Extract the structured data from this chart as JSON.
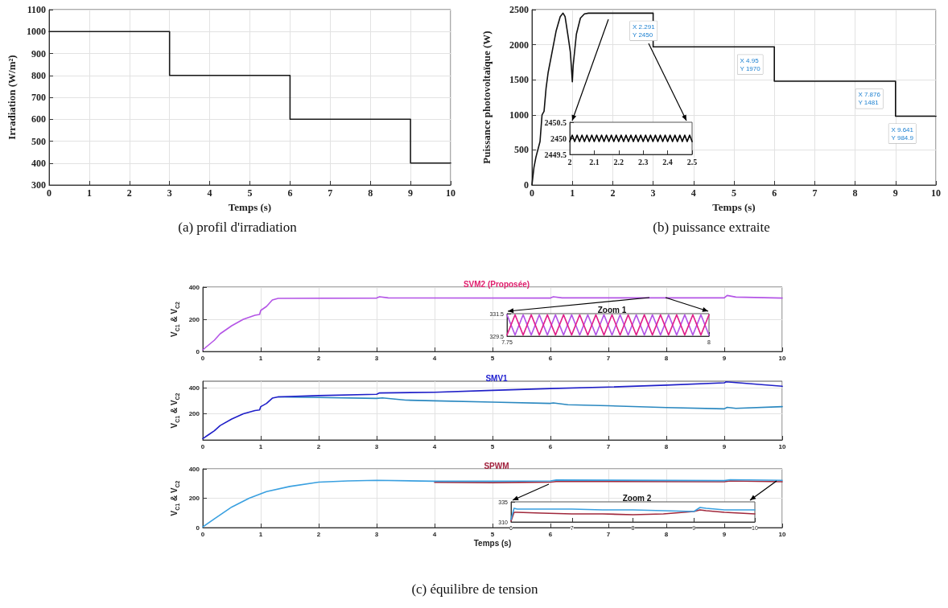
{
  "chart_data": [
    {
      "type": "line",
      "xlabel": "Temps (s)",
      "ylabel": "Irradiation (W/m²)",
      "xlim": [
        0,
        10
      ],
      "xticks": [
        0,
        1,
        2,
        3,
        4,
        5,
        6,
        7,
        8,
        9,
        10
      ],
      "ylim": [
        300,
        1100
      ],
      "yticks": [
        300,
        400,
        500,
        600,
        700,
        800,
        900,
        1000,
        1100
      ],
      "grid": true,
      "annotations": [
        "(a) profil d'irradiation"
      ],
      "series": [
        {
          "color": "#1a1a1a",
          "x": [
            0,
            3,
            3,
            6,
            6,
            9,
            9,
            10
          ],
          "values": [
            1000,
            1000,
            800,
            800,
            600,
            600,
            400,
            400
          ]
        }
      ]
    },
    {
      "type": "line",
      "xlabel": "Temps (s)",
      "ylabel": "Puissance photovoltaïque (W)",
      "xlim": [
        0,
        10
      ],
      "xticks": [
        0,
        1,
        2,
        3,
        4,
        5,
        6,
        7,
        8,
        9,
        10
      ],
      "ylim": [
        0,
        2500
      ],
      "yticks": [
        0,
        500,
        1000,
        1500,
        2000,
        2500
      ],
      "grid": true,
      "annotations": [
        {
          "text": "X 2.291\nY 2450",
          "x": 2.291,
          "y": 2450
        },
        {
          "text": "X 4.95\nY 1970",
          "x": 4.95,
          "y": 1970
        },
        {
          "text": "X 7.876\nY 1481",
          "x": 7.876,
          "y": 1481
        },
        {
          "text": "X 9.641\nY 984.9",
          "x": 9.641,
          "y": 984.9
        },
        "(b) puissance extraite"
      ],
      "series": [
        {
          "color": "#111111",
          "x": [
            0,
            0.05,
            0.1,
            0.2,
            0.25,
            0.3,
            0.35,
            0.4,
            0.5,
            0.6,
            0.7,
            0.77,
            0.82,
            0.9,
            0.95,
            0.98,
            1.0,
            1.02,
            1.1,
            1.2,
            1.3,
            1.4,
            3,
            3,
            6,
            6,
            9,
            9,
            10
          ],
          "values": [
            0,
            250,
            400,
            620,
            1000,
            1050,
            1380,
            1600,
            1900,
            2200,
            2400,
            2450,
            2400,
            2100,
            1900,
            1650,
            1470,
            1700,
            2150,
            2380,
            2440,
            2450,
            2450,
            1970,
            1970,
            1480,
            1480,
            980,
            980
          ]
        }
      ]
    },
    {
      "type": "line",
      "xlim": [
        2,
        2.5
      ],
      "xticks": [
        2,
        2.1,
        2.2,
        2.3,
        2.4,
        2.5
      ],
      "ylim": [
        2449.5,
        2450.5
      ],
      "yticks": [
        2449.5,
        2450,
        2450.5
      ],
      "series": [
        {
          "color": "#000000",
          "x": [
            2,
            2.01,
            2.02,
            2.03,
            2.04,
            2.05,
            2.06,
            2.07,
            2.08,
            2.09,
            2.1,
            2.11,
            2.12,
            2.13,
            2.14,
            2.15,
            2.16,
            2.17,
            2.18,
            2.19,
            2.2,
            2.21,
            2.22,
            2.23,
            2.24,
            2.25,
            2.26,
            2.27,
            2.28,
            2.29,
            2.3,
            2.31,
            2.32,
            2.33,
            2.34,
            2.35,
            2.36,
            2.37,
            2.38,
            2.39,
            2.4,
            2.41,
            2.42,
            2.43,
            2.44,
            2.45,
            2.46,
            2.47,
            2.48,
            2.49,
            2.5
          ],
          "values": [
            2449.9,
            2450.1,
            2449.9,
            2450.1,
            2449.9,
            2450.1,
            2449.9,
            2450.1,
            2449.9,
            2450.1,
            2449.9,
            2450.1,
            2449.9,
            2450.1,
            2449.9,
            2450.1,
            2449.9,
            2450.1,
            2449.9,
            2450.1,
            2449.9,
            2450.1,
            2449.9,
            2450.1,
            2449.9,
            2450.1,
            2449.9,
            2450.1,
            2449.9,
            2450.1,
            2449.9,
            2450.1,
            2449.9,
            2450.1,
            2449.9,
            2450.1,
            2449.9,
            2450.1,
            2449.9,
            2450.1,
            2449.9,
            2450.1,
            2449.9,
            2450.1,
            2449.9,
            2450.1,
            2449.9,
            2450.1,
            2449.9,
            2450.1,
            2449.9
          ]
        }
      ]
    },
    {
      "type": "line",
      "title": "SVM2 (Proposée)",
      "ylabel": "V$_{C1}$ & V$_{C2}$",
      "xlim": [
        0,
        10
      ],
      "xticks": [
        0,
        1,
        2,
        3,
        4,
        5,
        6,
        7,
        8,
        9,
        10
      ],
      "ylim": [
        0,
        400
      ],
      "yticks": [
        0,
        200,
        400
      ],
      "grid": true,
      "series": [
        {
          "color": "#b455e6",
          "x": [
            0,
            0.1,
            0.2,
            0.3,
            0.5,
            0.7,
            0.9,
            0.98,
            1.0,
            1.1,
            1.2,
            1.3,
            3,
            3.05,
            3.2,
            6,
            6.05,
            6.2,
            9,
            9.05,
            9.2,
            10
          ],
          "values": [
            10,
            40,
            70,
            110,
            160,
            200,
            225,
            230,
            255,
            280,
            320,
            330,
            332,
            340,
            333,
            332,
            340,
            333,
            333,
            348,
            338,
            332
          ]
        }
      ]
    },
    {
      "type": "line",
      "title": "Zoom 1",
      "xlim": [
        7.75,
        8
      ],
      "xticks": [
        7.75,
        8
      ],
      "ylim": [
        329.5,
        331.5
      ],
      "yticks": [
        329.5,
        331.5
      ],
      "series": [
        {
          "color": "#b455e6",
          "x": [
            7.75,
            7.76,
            7.77,
            7.78,
            7.79,
            7.8,
            7.81,
            7.82,
            7.83,
            7.84,
            7.85,
            7.86,
            7.87,
            7.88,
            7.89,
            7.9,
            7.91,
            7.92,
            7.93,
            7.94,
            7.95,
            7.96,
            7.97,
            7.98,
            7.99,
            8
          ],
          "values": [
            331.4,
            329.6,
            331.4,
            329.6,
            331.4,
            329.6,
            331.4,
            329.6,
            331.4,
            329.6,
            331.4,
            329.6,
            331.4,
            329.6,
            331.4,
            329.6,
            331.4,
            329.6,
            331.4,
            329.6,
            331.4,
            329.6,
            331.4,
            329.6,
            331.4,
            329.6
          ]
        },
        {
          "color": "#e0208c",
          "x": [
            7.75,
            7.76,
            7.77,
            7.78,
            7.79,
            7.8,
            7.81,
            7.82,
            7.83,
            7.84,
            7.85,
            7.86,
            7.87,
            7.88,
            7.89,
            7.9,
            7.91,
            7.92,
            7.93,
            7.94,
            7.95,
            7.96,
            7.97,
            7.98,
            7.99,
            8
          ],
          "values": [
            329.6,
            331.4,
            329.6,
            331.4,
            329.6,
            331.4,
            329.6,
            331.4,
            329.6,
            331.4,
            329.6,
            331.4,
            329.6,
            331.4,
            329.6,
            331.4,
            329.6,
            331.4,
            329.6,
            331.4,
            329.6,
            331.4,
            329.6,
            331.4,
            329.6,
            331.4
          ]
        }
      ]
    },
    {
      "type": "line",
      "title": "SMV1",
      "ylabel": "V$_{C1}$ & V$_{C2}$",
      "xlim": [
        0,
        10
      ],
      "xticks": [
        0,
        1,
        2,
        3,
        4,
        5,
        6,
        7,
        8,
        9,
        10
      ],
      "ylim": [
        0,
        450
      ],
      "yticks": [
        200,
        400
      ],
      "grid": true,
      "series": [
        {
          "color": "#2a88c0",
          "x": [
            1.3,
            2,
            3,
            3.1,
            3.5,
            4,
            5,
            6,
            6.05,
            6.3,
            7,
            8,
            9,
            9.05,
            9.2,
            10
          ],
          "values": [
            330,
            325,
            318,
            322,
            305,
            300,
            290,
            280,
            284,
            270,
            262,
            248,
            238,
            250,
            242,
            255
          ]
        },
        {
          "color": "#1f1fc8",
          "x": [
            0,
            0.1,
            0.2,
            0.3,
            0.5,
            0.7,
            0.9,
            0.98,
            1.0,
            1.1,
            1.2,
            1.3,
            2,
            3,
            3.05,
            4,
            5,
            6,
            7,
            8,
            9,
            9.03,
            10
          ],
          "values": [
            10,
            40,
            70,
            110,
            160,
            200,
            225,
            230,
            255,
            280,
            320,
            330,
            340,
            350,
            360,
            365,
            380,
            394,
            405,
            420,
            438,
            445,
            411
          ]
        }
      ]
    },
    {
      "type": "line",
      "title": "SPWM",
      "xlabel": "Temps (s)",
      "ylabel": "V$_{C1}$ & V$_{C2}$",
      "xlim": [
        0,
        10
      ],
      "xticks": [
        0,
        1,
        2,
        3,
        4,
        5,
        6,
        7,
        8,
        9,
        10
      ],
      "ylim": [
        0,
        400
      ],
      "yticks": [
        0,
        200,
        400
      ],
      "grid": true,
      "annotations": [
        "(c) équilibre de tension"
      ],
      "series": [
        {
          "color": "#a0283c",
          "x": [
            4,
            5,
            6,
            6.1,
            9,
            9.1,
            10
          ],
          "values": [
            308,
            306,
            310,
            314,
            312,
            318,
            312
          ]
        },
        {
          "color": "#3aa0e0",
          "x": [
            0,
            0.2,
            0.5,
            0.8,
            1,
            1.1,
            1.5,
            2,
            2.5,
            3,
            4,
            5,
            6,
            6.1,
            9,
            9.1,
            10
          ],
          "values": [
            5,
            60,
            140,
            200,
            230,
            245,
            280,
            310,
            318,
            322,
            316,
            316,
            318,
            324,
            320,
            326,
            322
          ]
        }
      ]
    },
    {
      "type": "line",
      "title": "Zoom 2",
      "xlim": [
        6,
        10
      ],
      "xticks": [
        6,
        7,
        8,
        9,
        10
      ],
      "ylim": [
        310,
        335
      ],
      "yticks": [
        310,
        335
      ],
      "series": [
        {
          "color": "#a0283c",
          "x": [
            6,
            6.05,
            6.1,
            6.5,
            7,
            7.5,
            8,
            8.5,
            9,
            9.1,
            9.2,
            9.5,
            10
          ],
          "values": [
            311,
            322,
            322,
            321,
            320,
            320,
            319,
            320,
            323,
            325,
            324,
            322,
            320
          ]
        },
        {
          "color": "#3aa0e0",
          "x": [
            6,
            6.05,
            6.1,
            6.5,
            7,
            7.5,
            8,
            8.5,
            9,
            9.1,
            9.2,
            9.5,
            10
          ],
          "values": [
            313,
            327,
            326,
            326,
            326,
            325,
            325,
            324,
            323,
            328,
            327,
            325,
            325
          ]
        }
      ]
    }
  ]
}
